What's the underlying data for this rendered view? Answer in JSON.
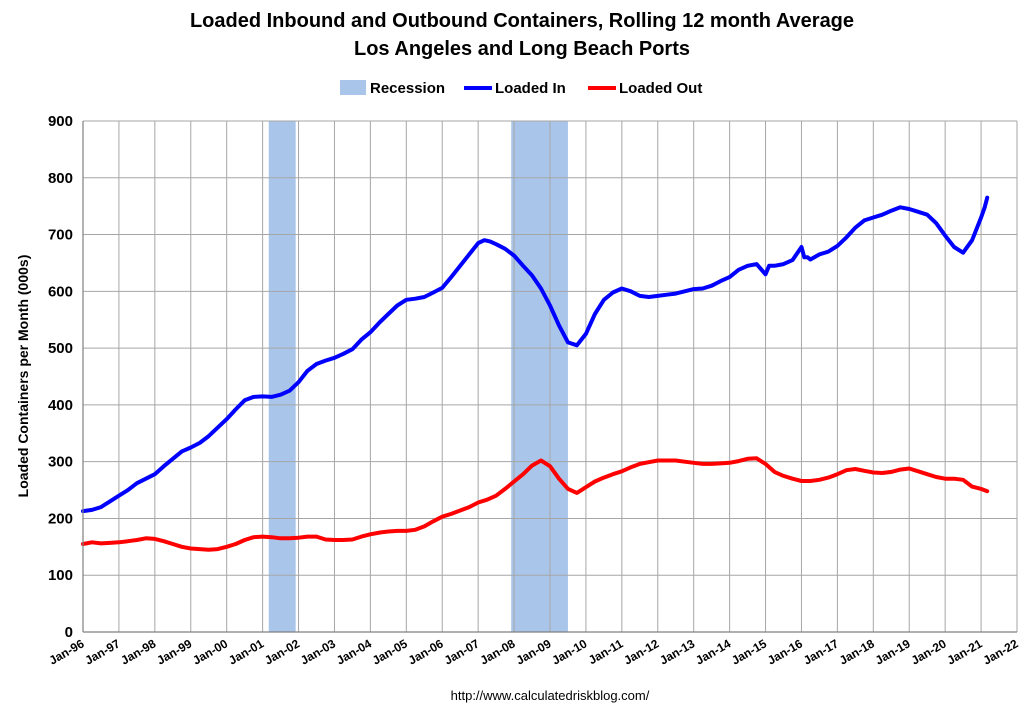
{
  "chart_data": {
    "type": "line",
    "title": "Loaded Inbound and Outbound Containers, Rolling 12 month Average",
    "subtitle": "Los Angeles and Long Beach Ports",
    "ylabel": "Loaded Containers per Month (000s)",
    "xlabel": "",
    "source": "http://www.calculatedriskblog.com/",
    "ylim": [
      0,
      900
    ],
    "xlim": [
      1996.0,
      2022.0
    ],
    "yticks": [
      "0",
      "100",
      "200",
      "300",
      "400",
      "500",
      "600",
      "700",
      "800",
      "900"
    ],
    "xticks": [
      "Jan-96",
      "Jan-97",
      "Jan-98",
      "Jan-99",
      "Jan-00",
      "Jan-01",
      "Jan-02",
      "Jan-03",
      "Jan-04",
      "Jan-05",
      "Jan-06",
      "Jan-07",
      "Jan-08",
      "Jan-09",
      "Jan-10",
      "Jan-11",
      "Jan-12",
      "Jan-13",
      "Jan-14",
      "Jan-15",
      "Jan-16",
      "Jan-17",
      "Jan-18",
      "Jan-19",
      "Jan-20",
      "Jan-21",
      "Jan-22"
    ],
    "grid": true,
    "legend": {
      "position": "top-center",
      "recession_label": "Recession"
    },
    "recessions": [
      {
        "start": 2001.17,
        "end": 2001.92
      },
      {
        "start": 2007.92,
        "end": 2009.5
      }
    ],
    "colors": {
      "recession": "#a9c6ea",
      "loaded_in": "#0000ff",
      "loaded_out": "#ff0000",
      "grid": "#a6a6a6"
    },
    "series": [
      {
        "name": "Loaded In",
        "x": [
          1996.0,
          1996.25,
          1996.5,
          1996.75,
          1997.0,
          1997.25,
          1997.5,
          1997.75,
          1998.0,
          1998.25,
          1998.5,
          1998.75,
          1999.0,
          1999.25,
          1999.5,
          1999.75,
          2000.0,
          2000.25,
          2000.5,
          2000.75,
          2001.0,
          2001.25,
          2001.5,
          2001.75,
          2002.0,
          2002.25,
          2002.5,
          2002.75,
          2003.0,
          2003.25,
          2003.5,
          2003.75,
          2004.0,
          2004.25,
          2004.5,
          2004.75,
          2005.0,
          2005.25,
          2005.5,
          2005.75,
          2006.0,
          2006.25,
          2006.5,
          2006.75,
          2007.0,
          2007.17,
          2007.33,
          2007.5,
          2007.75,
          2008.0,
          2008.25,
          2008.5,
          2008.75,
          2009.0,
          2009.25,
          2009.5,
          2009.75,
          2010.0,
          2010.25,
          2010.5,
          2010.75,
          2011.0,
          2011.25,
          2011.5,
          2011.75,
          2012.0,
          2012.25,
          2012.5,
          2012.75,
          2013.0,
          2013.25,
          2013.5,
          2013.75,
          2014.0,
          2014.25,
          2014.5,
          2014.75,
          2015.0,
          2015.1,
          2015.25,
          2015.5,
          2015.75,
          2016.0,
          2016.08,
          2016.17,
          2016.25,
          2016.5,
          2016.75,
          2017.0,
          2017.25,
          2017.5,
          2017.75,
          2018.0,
          2018.25,
          2018.5,
          2018.75,
          2019.0,
          2019.25,
          2019.5,
          2019.75,
          2020.0,
          2020.25,
          2020.5,
          2020.75,
          2021.0,
          2021.1,
          2021.17
        ],
        "values": [
          213,
          215,
          220,
          230,
          240,
          250,
          262,
          270,
          278,
          292,
          305,
          318,
          325,
          333,
          345,
          360,
          375,
          392,
          408,
          414,
          415,
          414,
          418,
          425,
          440,
          460,
          472,
          478,
          483,
          490,
          498,
          515,
          528,
          545,
          560,
          575,
          585,
          587,
          590,
          598,
          606,
          625,
          645,
          665,
          685,
          690,
          688,
          683,
          675,
          663,
          645,
          628,
          605,
          575,
          540,
          510,
          505,
          525,
          560,
          585,
          598,
          605,
          600,
          592,
          590,
          592,
          594,
          596,
          600,
          604,
          605,
          610,
          618,
          625,
          638,
          645,
          648,
          630,
          645,
          645,
          648,
          655,
          678,
          660,
          660,
          656,
          665,
          670,
          680,
          695,
          712,
          725,
          730,
          735,
          742,
          748,
          745,
          740,
          735,
          720,
          698,
          678,
          668,
          690,
          730,
          748,
          765
        ]
      },
      {
        "name": "Loaded Out",
        "x": [
          1996.0,
          1996.25,
          1996.5,
          1996.75,
          1997.0,
          1997.25,
          1997.5,
          1997.75,
          1998.0,
          1998.25,
          1998.5,
          1998.75,
          1999.0,
          1999.25,
          1999.5,
          1999.75,
          2000.0,
          2000.25,
          2000.5,
          2000.75,
          2001.0,
          2001.25,
          2001.5,
          2001.75,
          2002.0,
          2002.25,
          2002.5,
          2002.75,
          2003.0,
          2003.25,
          2003.5,
          2003.75,
          2004.0,
          2004.25,
          2004.5,
          2004.75,
          2005.0,
          2005.25,
          2005.5,
          2005.75,
          2006.0,
          2006.25,
          2006.5,
          2006.75,
          2007.0,
          2007.25,
          2007.5,
          2007.75,
          2008.0,
          2008.25,
          2008.5,
          2008.75,
          2009.0,
          2009.25,
          2009.5,
          2009.75,
          2010.0,
          2010.25,
          2010.5,
          2010.75,
          2011.0,
          2011.25,
          2011.5,
          2011.75,
          2012.0,
          2012.25,
          2012.5,
          2012.75,
          2013.0,
          2013.25,
          2013.5,
          2013.75,
          2014.0,
          2014.25,
          2014.5,
          2014.75,
          2015.0,
          2015.25,
          2015.5,
          2015.75,
          2016.0,
          2016.25,
          2016.5,
          2016.75,
          2017.0,
          2017.25,
          2017.5,
          2017.75,
          2018.0,
          2018.25,
          2018.5,
          2018.75,
          2019.0,
          2019.25,
          2019.5,
          2019.75,
          2020.0,
          2020.25,
          2020.5,
          2020.75,
          2021.0,
          2021.17
        ],
        "values": [
          155,
          158,
          156,
          157,
          158,
          160,
          162,
          165,
          164,
          160,
          155,
          150,
          147,
          146,
          145,
          146,
          150,
          155,
          162,
          167,
          168,
          167,
          165,
          165,
          166,
          168,
          168,
          163,
          162,
          162,
          163,
          168,
          172,
          175,
          177,
          178,
          178,
          180,
          186,
          195,
          203,
          208,
          214,
          220,
          228,
          233,
          240,
          252,
          265,
          278,
          293,
          302,
          292,
          270,
          252,
          245,
          255,
          265,
          272,
          278,
          283,
          290,
          296,
          299,
          302,
          302,
          302,
          300,
          298,
          296,
          296,
          297,
          298,
          301,
          305,
          306,
          296,
          282,
          275,
          270,
          266,
          266,
          268,
          272,
          278,
          285,
          287,
          284,
          281,
          280,
          282,
          286,
          288,
          283,
          278,
          273,
          270,
          270,
          268,
          256,
          252,
          248
        ]
      }
    ]
  }
}
